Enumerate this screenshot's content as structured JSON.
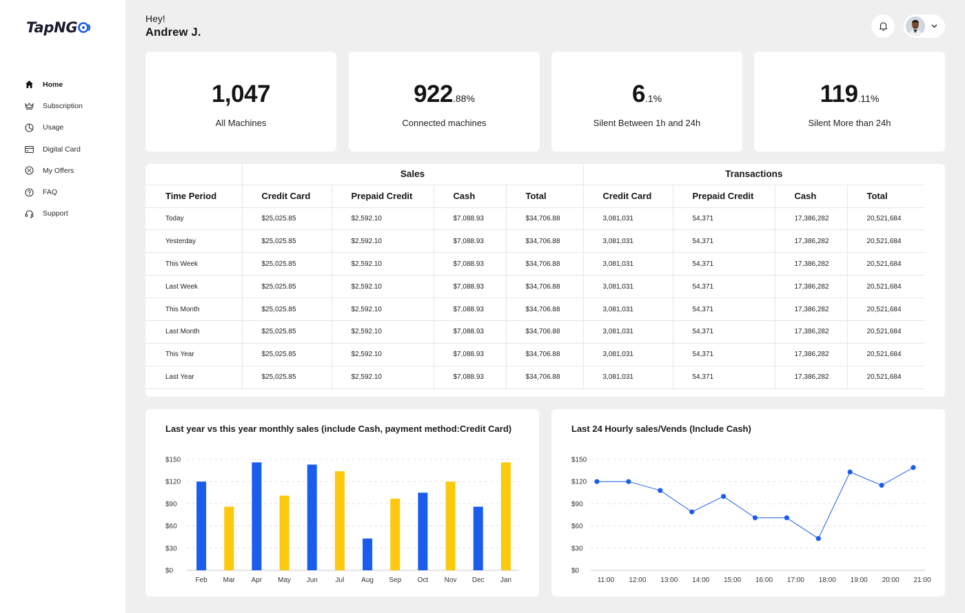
{
  "brand": {
    "name": "TapNG",
    "logo_tail": "o"
  },
  "sidebar": {
    "items": [
      {
        "label": "Home",
        "icon": "home-icon",
        "active": true
      },
      {
        "label": "Subscription",
        "icon": "crown-icon"
      },
      {
        "label": "Usage",
        "icon": "pie-chart-icon"
      },
      {
        "label": "Digital Card",
        "icon": "credit-card-icon"
      },
      {
        "label": "My Offers",
        "icon": "discount-icon"
      },
      {
        "label": "FAQ",
        "icon": "question-icon"
      },
      {
        "label": "Support",
        "icon": "headset-icon"
      }
    ]
  },
  "header": {
    "greeting": "Hey!",
    "user_name": "Andrew J.",
    "bell_icon": "bell-icon",
    "chevron_icon": "chevron-down-icon"
  },
  "stats": [
    {
      "value": "1,047",
      "suffix": "",
      "label": "All Machines"
    },
    {
      "value": "922",
      "suffix": ".88%",
      "label": "Connected machines"
    },
    {
      "value": "6",
      "suffix": ".1%",
      "label": "Silent Between 1h and 24h"
    },
    {
      "value": "119",
      "suffix": ".11%",
      "label": "Silent More than 24h"
    }
  ],
  "table": {
    "groups": [
      "Sales",
      "Transactions"
    ],
    "columns": [
      "Time Period",
      "Credit Card",
      "Prepaid Credit",
      "Cash",
      "Total",
      "Credit Card",
      "Prepaid Credit",
      "Cash",
      "Total"
    ],
    "rows": [
      [
        "Today",
        "$25,025.85",
        "$2,592.10",
        "$7,088.93",
        "$34,706.88",
        "3,081,031",
        "54,371",
        "17,386,282",
        "20,521,684"
      ],
      [
        "Yesterday",
        "$25,025.85",
        "$2,592.10",
        "$7,088.93",
        "$34,706.88",
        "3,081,031",
        "54,371",
        "17,386,282",
        "20,521,684"
      ],
      [
        "This Week",
        "$25,025.85",
        "$2,592.10",
        "$7,088.93",
        "$34,706.88",
        "3,081,031",
        "54,371",
        "17,386,282",
        "20,521,684"
      ],
      [
        "Last Week",
        "$25,025.85",
        "$2,592.10",
        "$7,088.93",
        "$34,706.88",
        "3,081,031",
        "54,371",
        "17,386,282",
        "20,521,684"
      ],
      [
        "This Month",
        "$25,025.85",
        "$2,592.10",
        "$7,088.93",
        "$34,706.88",
        "3,081,031",
        "54,371",
        "17,386,282",
        "20,521,684"
      ],
      [
        "Last Month",
        "$25,025.85",
        "$2,592.10",
        "$7,088.93",
        "$34,706.88",
        "3,081,031",
        "54,371",
        "17,386,282",
        "20,521,684"
      ],
      [
        "This Year",
        "$25,025.85",
        "$2,592.10",
        "$7,088.93",
        "$34,706.88",
        "3,081,031",
        "54,371",
        "17,386,282",
        "20,521,684"
      ],
      [
        "Last Year",
        "$25,025.85",
        "$2,592.10",
        "$7,088.93",
        "$34,706.88",
        "3,081,031",
        "54,371",
        "17,386,282",
        "20,521,684"
      ]
    ]
  },
  "colors": {
    "blue": "#1a5ced",
    "yellow": "#fdc90c",
    "line": "#1a5ced"
  },
  "chart_data": [
    {
      "type": "bar",
      "title": "Last year vs this year monthly sales (include Cash, payment method:Credit Card)",
      "categories": [
        "Feb",
        "Mar",
        "Apr",
        "May",
        "Jun",
        "Jul",
        "Aug",
        "Sep",
        "Oct",
        "Nov",
        "Dec",
        "Jan"
      ],
      "values": [
        120,
        86,
        146,
        101,
        143,
        134,
        43,
        97,
        105,
        120,
        86,
        146
      ],
      "bar_colors": [
        "blue",
        "yellow",
        "blue",
        "yellow",
        "blue",
        "yellow",
        "blue",
        "yellow",
        "blue",
        "yellow",
        "blue",
        "yellow"
      ],
      "y_ticks": [
        "$150",
        "$120",
        "$90",
        "$60",
        "$30",
        "$0"
      ],
      "ylim": [
        0,
        150
      ],
      "grid": true
    },
    {
      "type": "line",
      "title": "Last 24 Hourly sales/Vends (Include Cash)",
      "categories": [
        "11:00",
        "12:00",
        "13:00",
        "14:00",
        "15:00",
        "16:00",
        "17:00",
        "18:00",
        "19:00",
        "20:00",
        "21:00"
      ],
      "values": [
        120,
        120,
        108,
        79,
        100,
        71,
        71,
        43,
        133,
        115,
        139
      ],
      "y_ticks": [
        "$150",
        "$120",
        "$90",
        "$60",
        "$30",
        "$0"
      ],
      "ylim": [
        0,
        150
      ],
      "grid": true
    }
  ]
}
